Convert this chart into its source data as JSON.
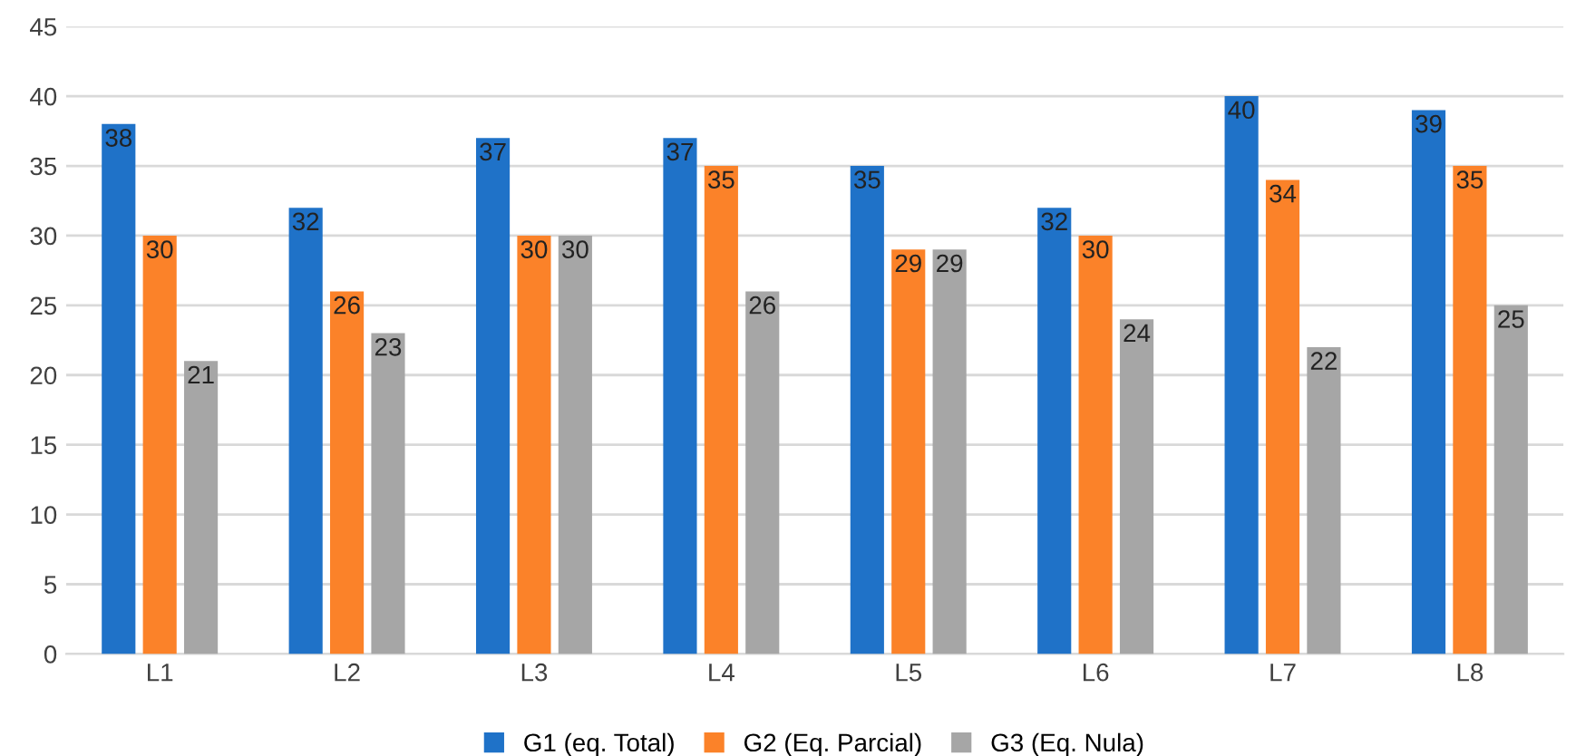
{
  "chart_data": {
    "type": "bar",
    "categories": [
      "L1",
      "L2",
      "L3",
      "L4",
      "L5",
      "L6",
      "L7",
      "L8"
    ],
    "series": [
      {
        "name": "G1 (eq. Total)",
        "color": "#1f72c8",
        "values": [
          38,
          32,
          37,
          37,
          35,
          32,
          40,
          39
        ]
      },
      {
        "name": "G2 (Eq. Parcial)",
        "color": "#fb8229",
        "values": [
          30,
          26,
          30,
          35,
          29,
          30,
          34,
          35
        ]
      },
      {
        "name": "G3 (Eq. Nula)",
        "color": "#a6a6a6",
        "values": [
          21,
          23,
          30,
          26,
          29,
          24,
          22,
          25
        ]
      }
    ],
    "ylim": [
      0,
      45
    ],
    "yticks": [
      0,
      5,
      10,
      15,
      20,
      25,
      30,
      35,
      40,
      45
    ],
    "grid": "y",
    "legend": "bottom",
    "data_labels": true
  }
}
